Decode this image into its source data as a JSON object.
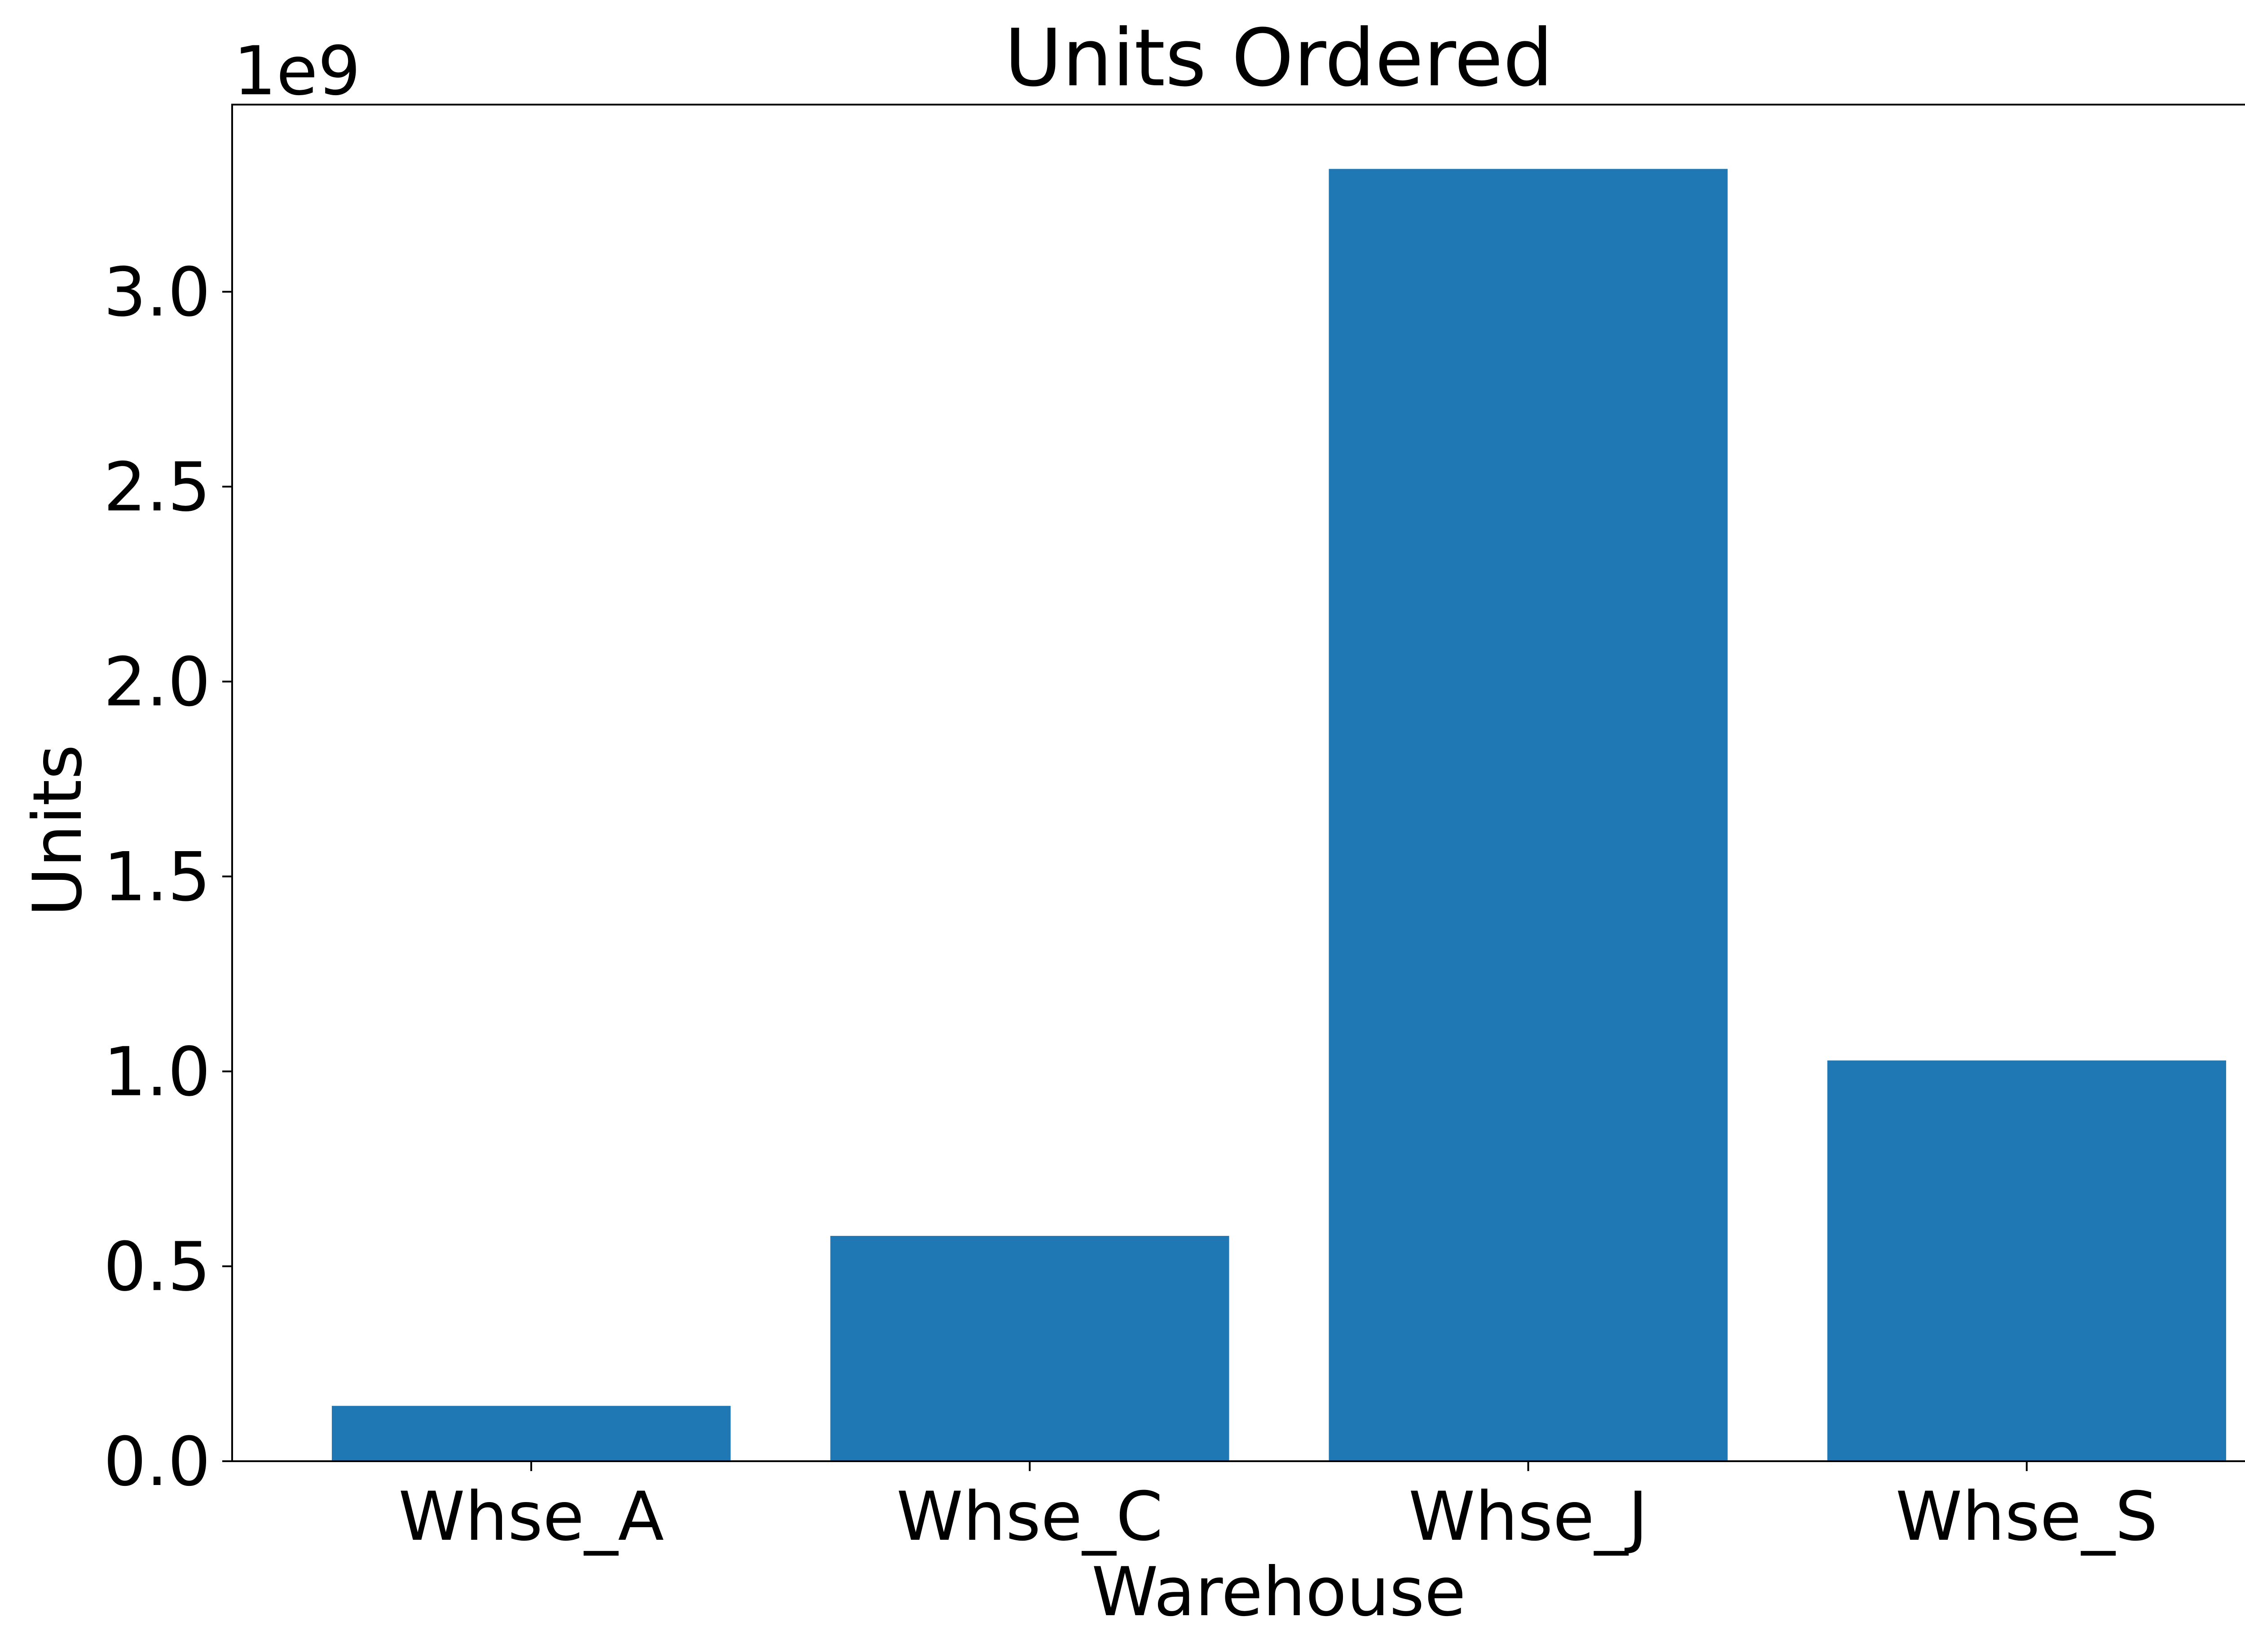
{
  "chart_data": {
    "type": "bar",
    "title": "Units Ordered",
    "xlabel": "Warehouse",
    "ylabel": "Units",
    "y_offset_label": "1e9",
    "categories": [
      "Whse_A",
      "Whse_C",
      "Whse_J",
      "Whse_S"
    ],
    "values": [
      142000000,
      578000000,
      3315000000,
      1028000000
    ],
    "ylim": [
      0,
      3480000000
    ],
    "y_ticks": [
      0,
      500000000,
      1000000000,
      1500000000,
      2000000000,
      2500000000,
      3000000000
    ],
    "y_tick_labels": [
      "0.0",
      "0.5",
      "1.0",
      "1.5",
      "2.0",
      "2.5",
      "3.0"
    ],
    "bar_color": "#1f77b4",
    "grid": false,
    "legend": "none"
  }
}
